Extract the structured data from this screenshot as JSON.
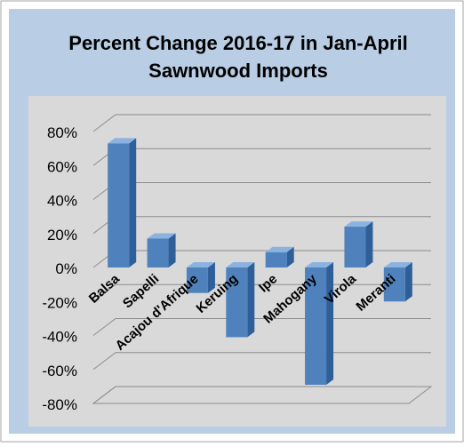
{
  "chart_data": {
    "type": "bar",
    "title_lines": [
      "Percent Change 2016-17 in Jan-April",
      "Sawnwood Imports"
    ],
    "categories": [
      "Balsa",
      "Sapelli",
      "Acajou d'Afrique",
      "Keruing",
      "Ipe",
      "Mahogany",
      "Virola",
      "Meranti"
    ],
    "values": [
      73,
      17,
      -15,
      -41,
      9,
      -69,
      24,
      -20
    ],
    "ylim": [
      -80,
      80
    ],
    "yticks": [
      80,
      60,
      40,
      20,
      0,
      -20,
      -40,
      -60,
      -80
    ],
    "ytick_labels": [
      "80%",
      "60%",
      "40%",
      "20%",
      "0%",
      "-20%",
      "-40%",
      "-60%",
      "-80%"
    ],
    "grid": true,
    "three_d": true,
    "colors": {
      "page_bg": "#b9cde4",
      "plot_bg": "#d9d9d9",
      "bar_front": "#4f81bd",
      "bar_side": "#2f5f98",
      "bar_top": "#8cb3e0",
      "grid": "#8c8c8c",
      "text": "#000000"
    }
  }
}
